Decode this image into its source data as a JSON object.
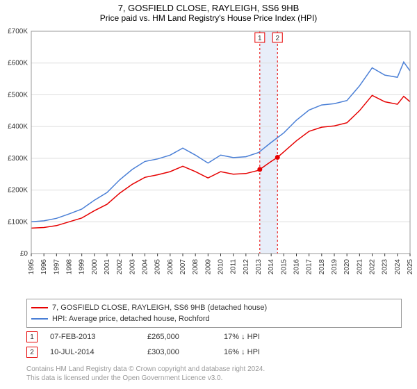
{
  "title": "7, GOSFIELD CLOSE, RAYLEIGH, SS6 9HB",
  "subtitle": "Price paid vs. HM Land Registry's House Price Index (HPI)",
  "chart": {
    "type": "line",
    "background_color": "#ffffff",
    "plot_border_color": "#999999",
    "grid_color": "#dddddd",
    "x_axis": {
      "min": 1995,
      "max": 2025,
      "ticks": [
        1995,
        1996,
        1997,
        1998,
        1999,
        2000,
        2001,
        2002,
        2003,
        2004,
        2005,
        2006,
        2007,
        2008,
        2009,
        2010,
        2011,
        2012,
        2013,
        2014,
        2015,
        2016,
        2017,
        2018,
        2019,
        2020,
        2021,
        2022,
        2023,
        2024,
        2025
      ],
      "tick_fontsize": 10,
      "tick_rotation": -90
    },
    "y_axis": {
      "min": 0,
      "max": 700000,
      "ticks": [
        0,
        100000,
        200000,
        300000,
        400000,
        500000,
        600000,
        700000
      ],
      "tick_labels": [
        "£0",
        "£100K",
        "£200K",
        "£300K",
        "£400K",
        "£500K",
        "£600K",
        "£700K"
      ],
      "tick_fontsize": 10
    },
    "series": [
      {
        "name": "property_price",
        "label": "7, GOSFIELD CLOSE, RAYLEIGH, SS6 9HB (detached house)",
        "color": "#e60000",
        "line_width": 1.5,
        "data": [
          [
            1995,
            80000
          ],
          [
            1996,
            82000
          ],
          [
            1997,
            88000
          ],
          [
            1998,
            100000
          ],
          [
            1999,
            112000
          ],
          [
            2000,
            135000
          ],
          [
            2001,
            155000
          ],
          [
            2002,
            190000
          ],
          [
            2003,
            218000
          ],
          [
            2004,
            240000
          ],
          [
            2005,
            248000
          ],
          [
            2006,
            258000
          ],
          [
            2007,
            275000
          ],
          [
            2008,
            258000
          ],
          [
            2009,
            238000
          ],
          [
            2010,
            258000
          ],
          [
            2011,
            250000
          ],
          [
            2012,
            252000
          ],
          [
            2013,
            262000
          ],
          [
            2013.1,
            265000
          ],
          [
            2014,
            290000
          ],
          [
            2014.5,
            303000
          ],
          [
            2015,
            320000
          ],
          [
            2016,
            355000
          ],
          [
            2017,
            385000
          ],
          [
            2018,
            398000
          ],
          [
            2019,
            402000
          ],
          [
            2020,
            412000
          ],
          [
            2021,
            450000
          ],
          [
            2022,
            498000
          ],
          [
            2023,
            478000
          ],
          [
            2024,
            470000
          ],
          [
            2024.5,
            495000
          ],
          [
            2025,
            478000
          ]
        ]
      },
      {
        "name": "hpi",
        "label": "HPI: Average price, detached house, Rochford",
        "color": "#4a7fd6",
        "line_width": 1.5,
        "data": [
          [
            1995,
            100000
          ],
          [
            1996,
            103000
          ],
          [
            1997,
            111000
          ],
          [
            1998,
            125000
          ],
          [
            1999,
            140000
          ],
          [
            2000,
            168000
          ],
          [
            2001,
            192000
          ],
          [
            2002,
            232000
          ],
          [
            2003,
            265000
          ],
          [
            2004,
            290000
          ],
          [
            2005,
            298000
          ],
          [
            2006,
            310000
          ],
          [
            2007,
            332000
          ],
          [
            2008,
            310000
          ],
          [
            2009,
            285000
          ],
          [
            2010,
            310000
          ],
          [
            2011,
            302000
          ],
          [
            2012,
            305000
          ],
          [
            2013,
            318000
          ],
          [
            2014,
            350000
          ],
          [
            2015,
            380000
          ],
          [
            2016,
            420000
          ],
          [
            2017,
            452000
          ],
          [
            2018,
            468000
          ],
          [
            2019,
            472000
          ],
          [
            2020,
            482000
          ],
          [
            2021,
            528000
          ],
          [
            2022,
            585000
          ],
          [
            2023,
            562000
          ],
          [
            2024,
            555000
          ],
          [
            2024.5,
            603000
          ],
          [
            2025,
            575000
          ]
        ]
      }
    ],
    "markers": [
      {
        "id": "1",
        "year": 2013.1,
        "price": 265000,
        "date_label": "07-FEB-2013",
        "price_label": "£265,000",
        "pct_label": "17% ↓ HPI",
        "vline_color": "#e60000",
        "badge_border": "#e60000",
        "badge_text": "#333333",
        "dot_color": "#e60000"
      },
      {
        "id": "2",
        "year": 2014.5,
        "price": 303000,
        "date_label": "10-JUL-2014",
        "price_label": "£303,000",
        "pct_label": "16% ↓ HPI",
        "vline_color": "#e60000",
        "badge_border": "#e60000",
        "badge_text": "#333333",
        "dot_color": "#e60000"
      }
    ],
    "highlight_band": {
      "x_from": 2013.1,
      "x_to": 2014.5,
      "fill": "#e8eef9"
    }
  },
  "legend": {
    "series1_label": "7, GOSFIELD CLOSE, RAYLEIGH, SS6 9HB (detached house)",
    "series2_label": "HPI: Average price, detached house, Rochford"
  },
  "footer": {
    "line1": "Contains HM Land Registry data © Crown copyright and database right 2024.",
    "line2": "This data is licensed under the Open Government Licence v3.0."
  }
}
